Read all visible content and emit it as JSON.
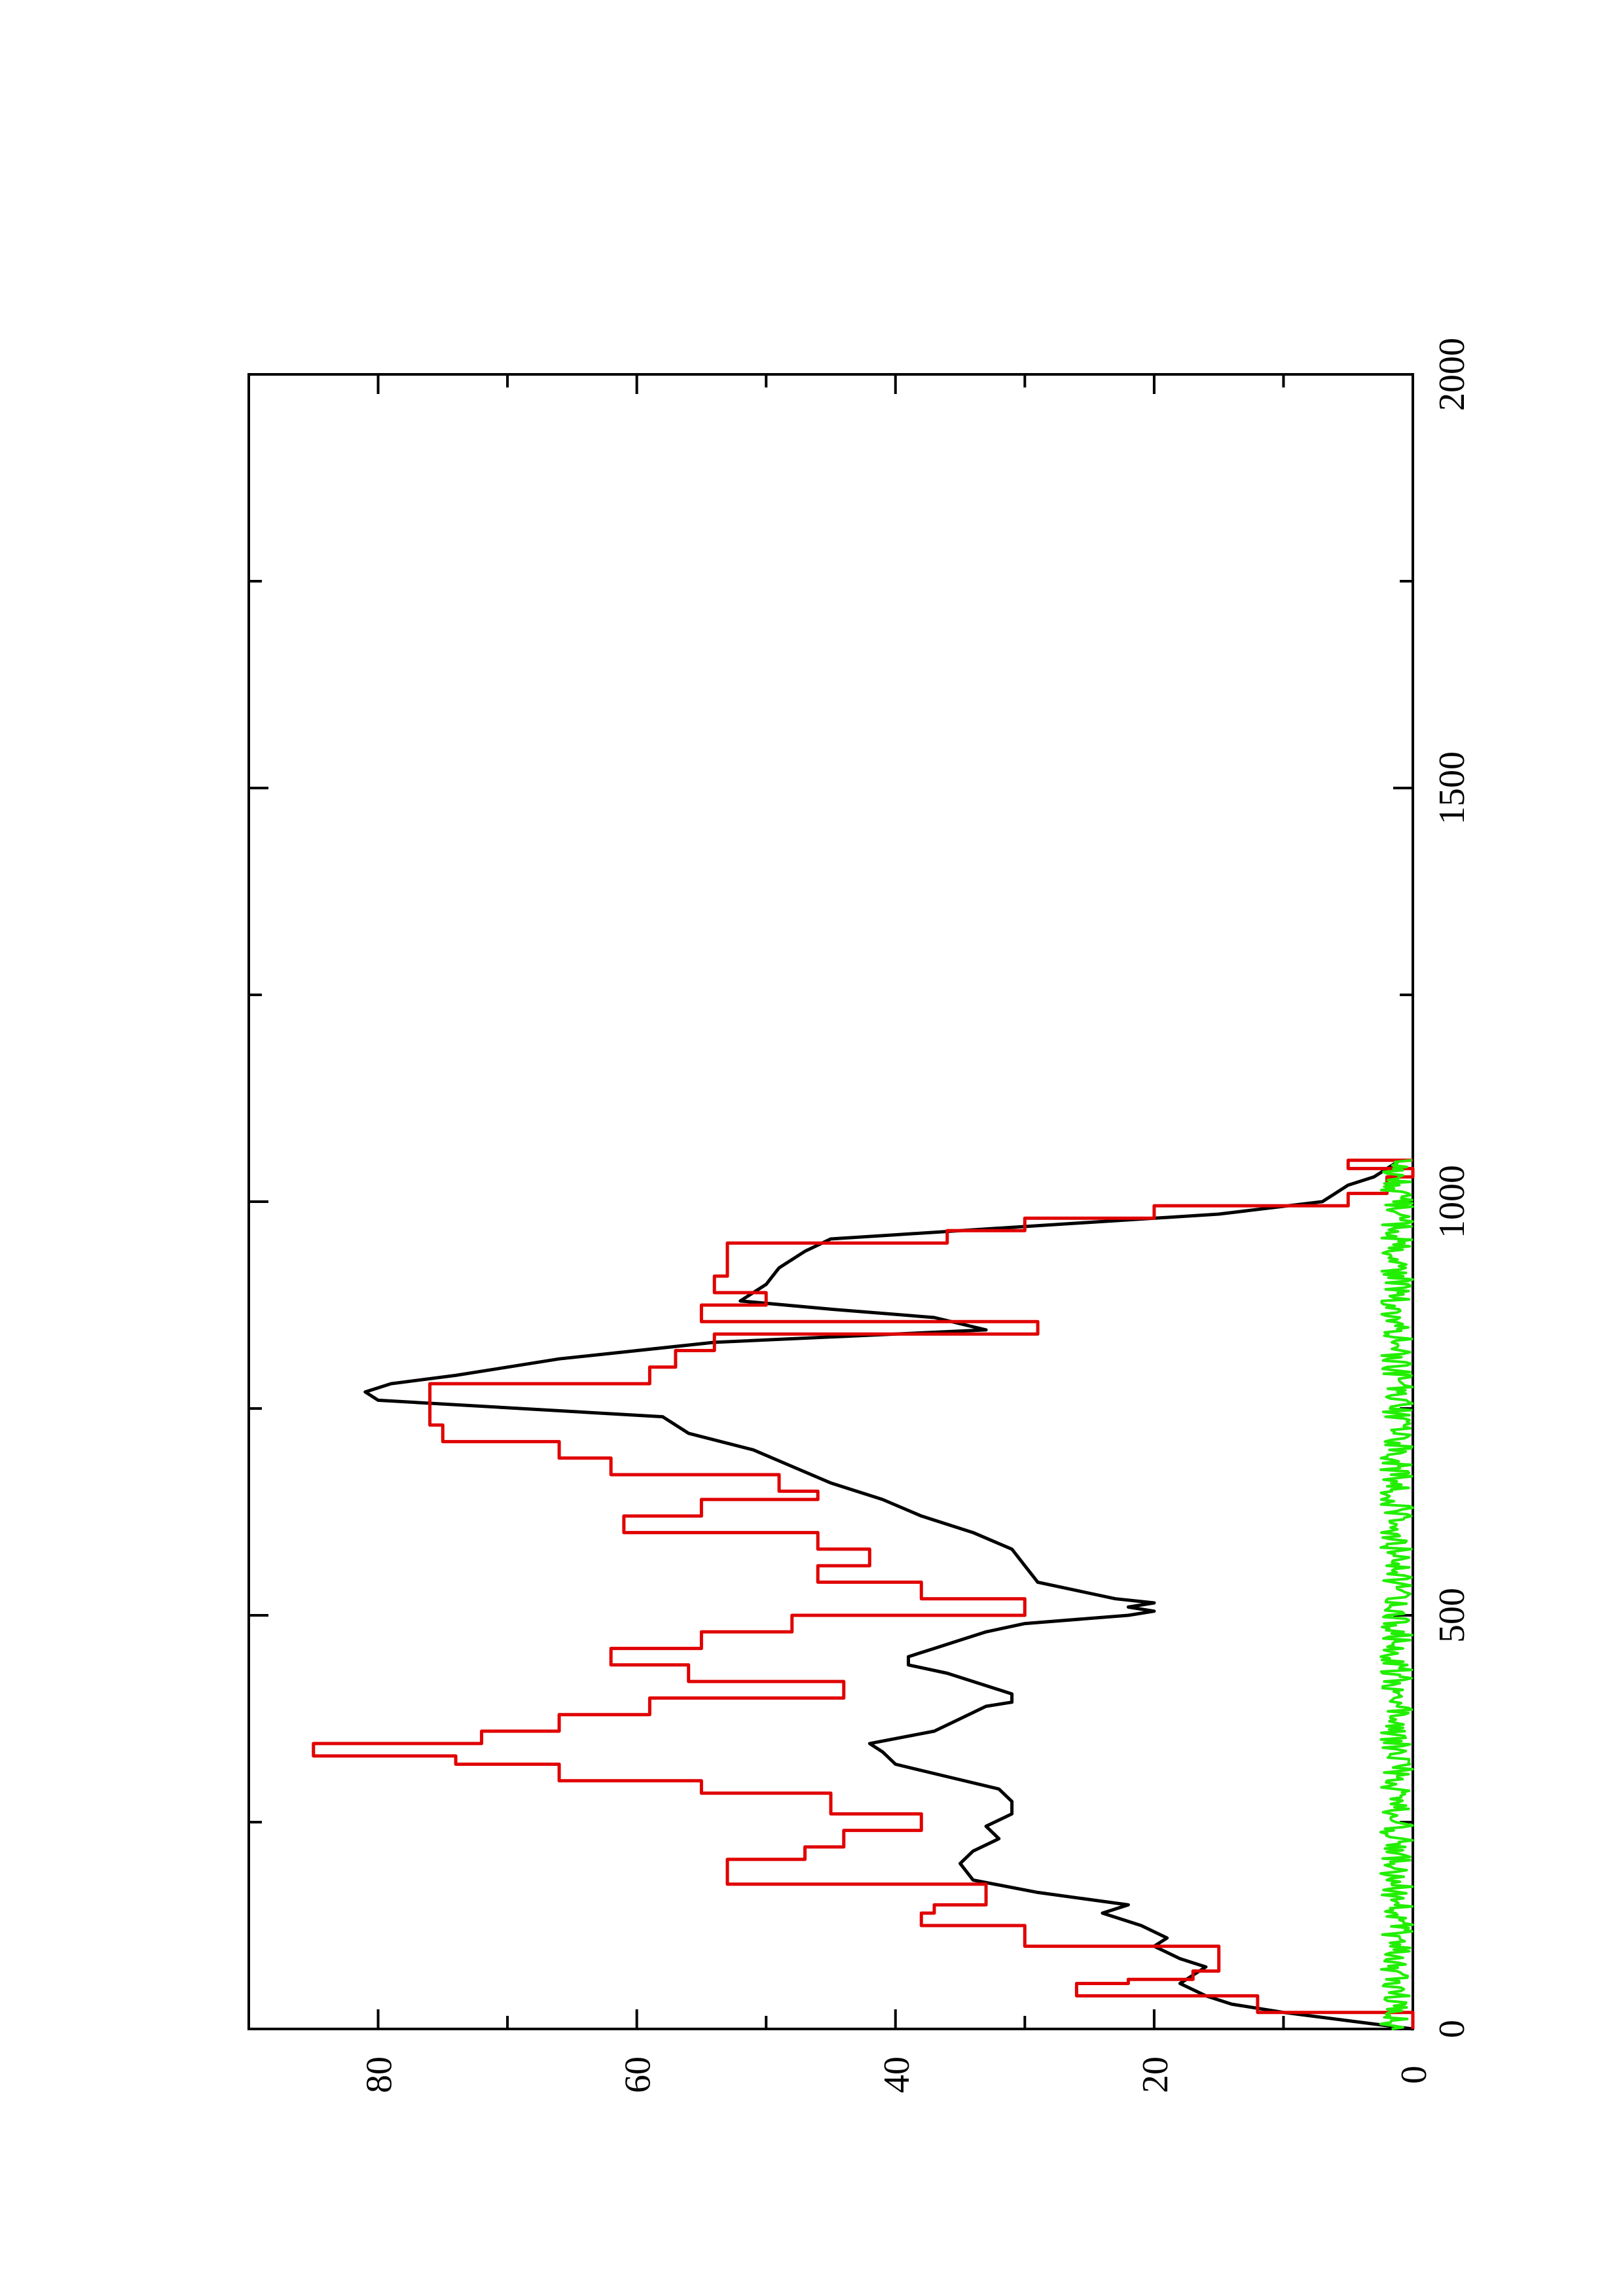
{
  "chart_data": {
    "type": "line",
    "orientation": "rotated-90-ccw",
    "title": "",
    "xlabel": "",
    "ylabel": "",
    "xlim": [
      0,
      2000
    ],
    "ylim": [
      0,
      90
    ],
    "x_ticks": [
      "0",
      "500",
      "1000",
      "1500",
      "2000"
    ],
    "y_ticks": [
      "0",
      "20",
      "40",
      "60",
      "80"
    ],
    "grid": false,
    "legend": "none",
    "series": [
      {
        "color": "#000000",
        "style": "line",
        "points": [
          [
            0,
            0
          ],
          [
            10,
            5
          ],
          [
            20,
            10
          ],
          [
            30,
            14
          ],
          [
            40,
            16
          ],
          [
            55,
            18
          ],
          [
            65,
            17
          ],
          [
            75,
            16
          ],
          [
            85,
            18
          ],
          [
            100,
            20
          ],
          [
            110,
            19
          ],
          [
            125,
            21
          ],
          [
            140,
            24
          ],
          [
            150,
            22
          ],
          [
            165,
            29
          ],
          [
            180,
            34
          ],
          [
            200,
            35
          ],
          [
            215,
            34
          ],
          [
            230,
            32
          ],
          [
            245,
            33
          ],
          [
            260,
            31
          ],
          [
            275,
            31
          ],
          [
            290,
            32
          ],
          [
            305,
            36
          ],
          [
            320,
            40
          ],
          [
            335,
            41
          ],
          [
            345,
            42
          ],
          [
            360,
            37
          ],
          [
            375,
            35
          ],
          [
            390,
            33
          ],
          [
            395,
            31
          ],
          [
            405,
            31
          ],
          [
            420,
            34
          ],
          [
            430,
            36
          ],
          [
            440,
            39
          ],
          [
            450,
            39
          ],
          [
            460,
            37
          ],
          [
            470,
            35
          ],
          [
            480,
            33
          ],
          [
            490,
            30
          ],
          [
            500,
            22
          ],
          [
            505,
            20
          ],
          [
            510,
            22
          ],
          [
            515,
            20
          ],
          [
            520,
            23
          ],
          [
            530,
            26
          ],
          [
            540,
            29
          ],
          [
            560,
            30
          ],
          [
            580,
            31
          ],
          [
            600,
            34
          ],
          [
            620,
            38
          ],
          [
            640,
            41
          ],
          [
            660,
            45
          ],
          [
            680,
            48
          ],
          [
            700,
            51
          ],
          [
            720,
            56
          ],
          [
            740,
            58
          ],
          [
            760,
            80
          ],
          [
            770,
            81
          ],
          [
            780,
            79
          ],
          [
            790,
            74
          ],
          [
            800,
            70
          ],
          [
            810,
            66
          ],
          [
            830,
            54
          ],
          [
            845,
            33
          ],
          [
            860,
            37
          ],
          [
            870,
            45
          ],
          [
            880,
            52
          ],
          [
            890,
            51
          ],
          [
            900,
            50
          ],
          [
            920,
            49
          ],
          [
            940,
            47
          ],
          [
            955,
            45
          ],
          [
            960,
            40
          ],
          [
            975,
            25
          ],
          [
            985,
            15
          ],
          [
            1000,
            7
          ],
          [
            1010,
            6
          ],
          [
            1020,
            5
          ],
          [
            1030,
            3
          ],
          [
            1040,
            2
          ],
          [
            1050,
            1
          ]
        ]
      },
      {
        "color": "#e00000",
        "style": "step",
        "points": [
          [
            0,
            0
          ],
          [
            20,
            12
          ],
          [
            40,
            26
          ],
          [
            55,
            22
          ],
          [
            60,
            17
          ],
          [
            70,
            15
          ],
          [
            85,
            15
          ],
          [
            100,
            30
          ],
          [
            125,
            38
          ],
          [
            140,
            37
          ],
          [
            150,
            33
          ],
          [
            175,
            53
          ],
          [
            205,
            47
          ],
          [
            220,
            44
          ],
          [
            240,
            38
          ],
          [
            260,
            45
          ],
          [
            285,
            55
          ],
          [
            300,
            66
          ],
          [
            320,
            74
          ],
          [
            330,
            85
          ],
          [
            345,
            72
          ],
          [
            360,
            66
          ],
          [
            380,
            59
          ],
          [
            400,
            44
          ],
          [
            420,
            56
          ],
          [
            440,
            62
          ],
          [
            460,
            55
          ],
          [
            480,
            48
          ],
          [
            500,
            30
          ],
          [
            520,
            38
          ],
          [
            540,
            46
          ],
          [
            560,
            42
          ],
          [
            580,
            46
          ],
          [
            600,
            61
          ],
          [
            620,
            55
          ],
          [
            640,
            46
          ],
          [
            650,
            49
          ],
          [
            670,
            62
          ],
          [
            690,
            66
          ],
          [
            710,
            75
          ],
          [
            730,
            76
          ],
          [
            760,
            76
          ],
          [
            780,
            59
          ],
          [
            800,
            57
          ],
          [
            820,
            54
          ],
          [
            840,
            29
          ],
          [
            855,
            55
          ],
          [
            875,
            50
          ],
          [
            890,
            54
          ],
          [
            910,
            53
          ],
          [
            930,
            53
          ],
          [
            950,
            36
          ],
          [
            965,
            30
          ],
          [
            980,
            20
          ],
          [
            995,
            5
          ],
          [
            1010,
            2
          ],
          [
            1030,
            0
          ],
          [
            1040,
            5
          ],
          [
            1050,
            0
          ]
        ]
      },
      {
        "color": "#22ee00",
        "style": "noise",
        "x_range": [
          0,
          1050
        ],
        "y_range": [
          0,
          2.5
        ]
      }
    ]
  }
}
